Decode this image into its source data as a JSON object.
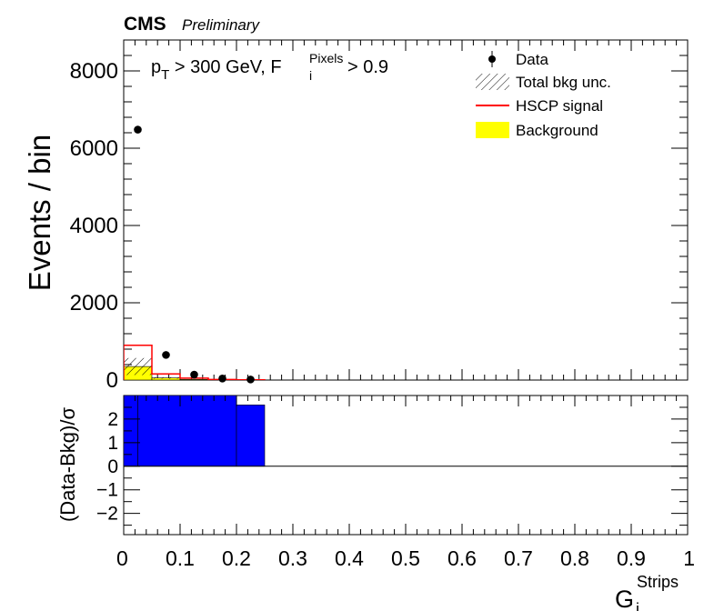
{
  "header": {
    "experiment": "CMS",
    "status": "Preliminary"
  },
  "selection": {
    "pt_symbol": "p",
    "pt_sub": "T",
    "pt_cut": " > 300 GeV, ",
    "f_symbol": "F",
    "f_sub": "i",
    "f_sup": "Pixels",
    "f_cut": " > 0.9"
  },
  "legend": [
    {
      "label": "Data",
      "kind": "marker"
    },
    {
      "label": "Total bkg unc.",
      "kind": "hatch"
    },
    {
      "label": "HSCP signal",
      "kind": "line",
      "color": "#ff0000"
    },
    {
      "label": "Background",
      "kind": "fill",
      "color": "#ffff00"
    }
  ],
  "colors": {
    "background_fill": "#ffff00",
    "signal_line": "#ff0000",
    "data_marker": "#000000",
    "ratio_fill": "#0000ff"
  },
  "chart_data": [
    {
      "type": "bar",
      "ylabel": "Events / bin",
      "xlim": [
        0,
        1
      ],
      "ylim": [
        0,
        8800
      ],
      "y_ticks": [
        0,
        2000,
        4000,
        6000,
        8000
      ],
      "y_tick_labels": [
        "0",
        "2000",
        "4000",
        "6000",
        "8000"
      ],
      "legend_position": "top-right",
      "bin_edges": [
        0,
        0.05,
        0.1,
        0.15,
        0.2,
        0.25
      ],
      "series": [
        {
          "name": "Data",
          "x": [
            0.025,
            0.075,
            0.125,
            0.175,
            0.225
          ],
          "values": [
            6480,
            650,
            140,
            40,
            15
          ]
        },
        {
          "name": "Background",
          "values": [
            350,
            55,
            18,
            6,
            2
          ]
        },
        {
          "name": "Total bkg unc.",
          "values": [
            220,
            20,
            8,
            3,
            1
          ]
        },
        {
          "name": "HSCP signal",
          "values": [
            900,
            160,
            50,
            15,
            5
          ]
        }
      ]
    },
    {
      "type": "bar",
      "xlabel": "G",
      "xlabel_sub": "i",
      "xlabel_sup": "Strips",
      "ylabel": "(Data-Bkg)/σ",
      "xlim": [
        0,
        1
      ],
      "ylim": [
        -2.9,
        3.0
      ],
      "y_ticks": [
        -2,
        -1,
        0,
        1,
        2
      ],
      "y_tick_labels": [
        "−2",
        "−1",
        "0",
        "1",
        "2"
      ],
      "x_ticks": [
        0,
        0.1,
        0.2,
        0.3,
        0.4,
        0.5,
        0.6,
        0.7,
        0.8,
        0.9,
        1
      ],
      "x_tick_labels": [
        "0",
        "0.1",
        "0.2",
        "0.3",
        "0.4",
        "0.5",
        "0.6",
        "0.7",
        "0.8",
        "0.9",
        "1"
      ],
      "bin_edges": [
        0,
        0.025,
        0.2,
        0.25
      ],
      "values": [
        3.0,
        3.0,
        2.6
      ]
    }
  ]
}
